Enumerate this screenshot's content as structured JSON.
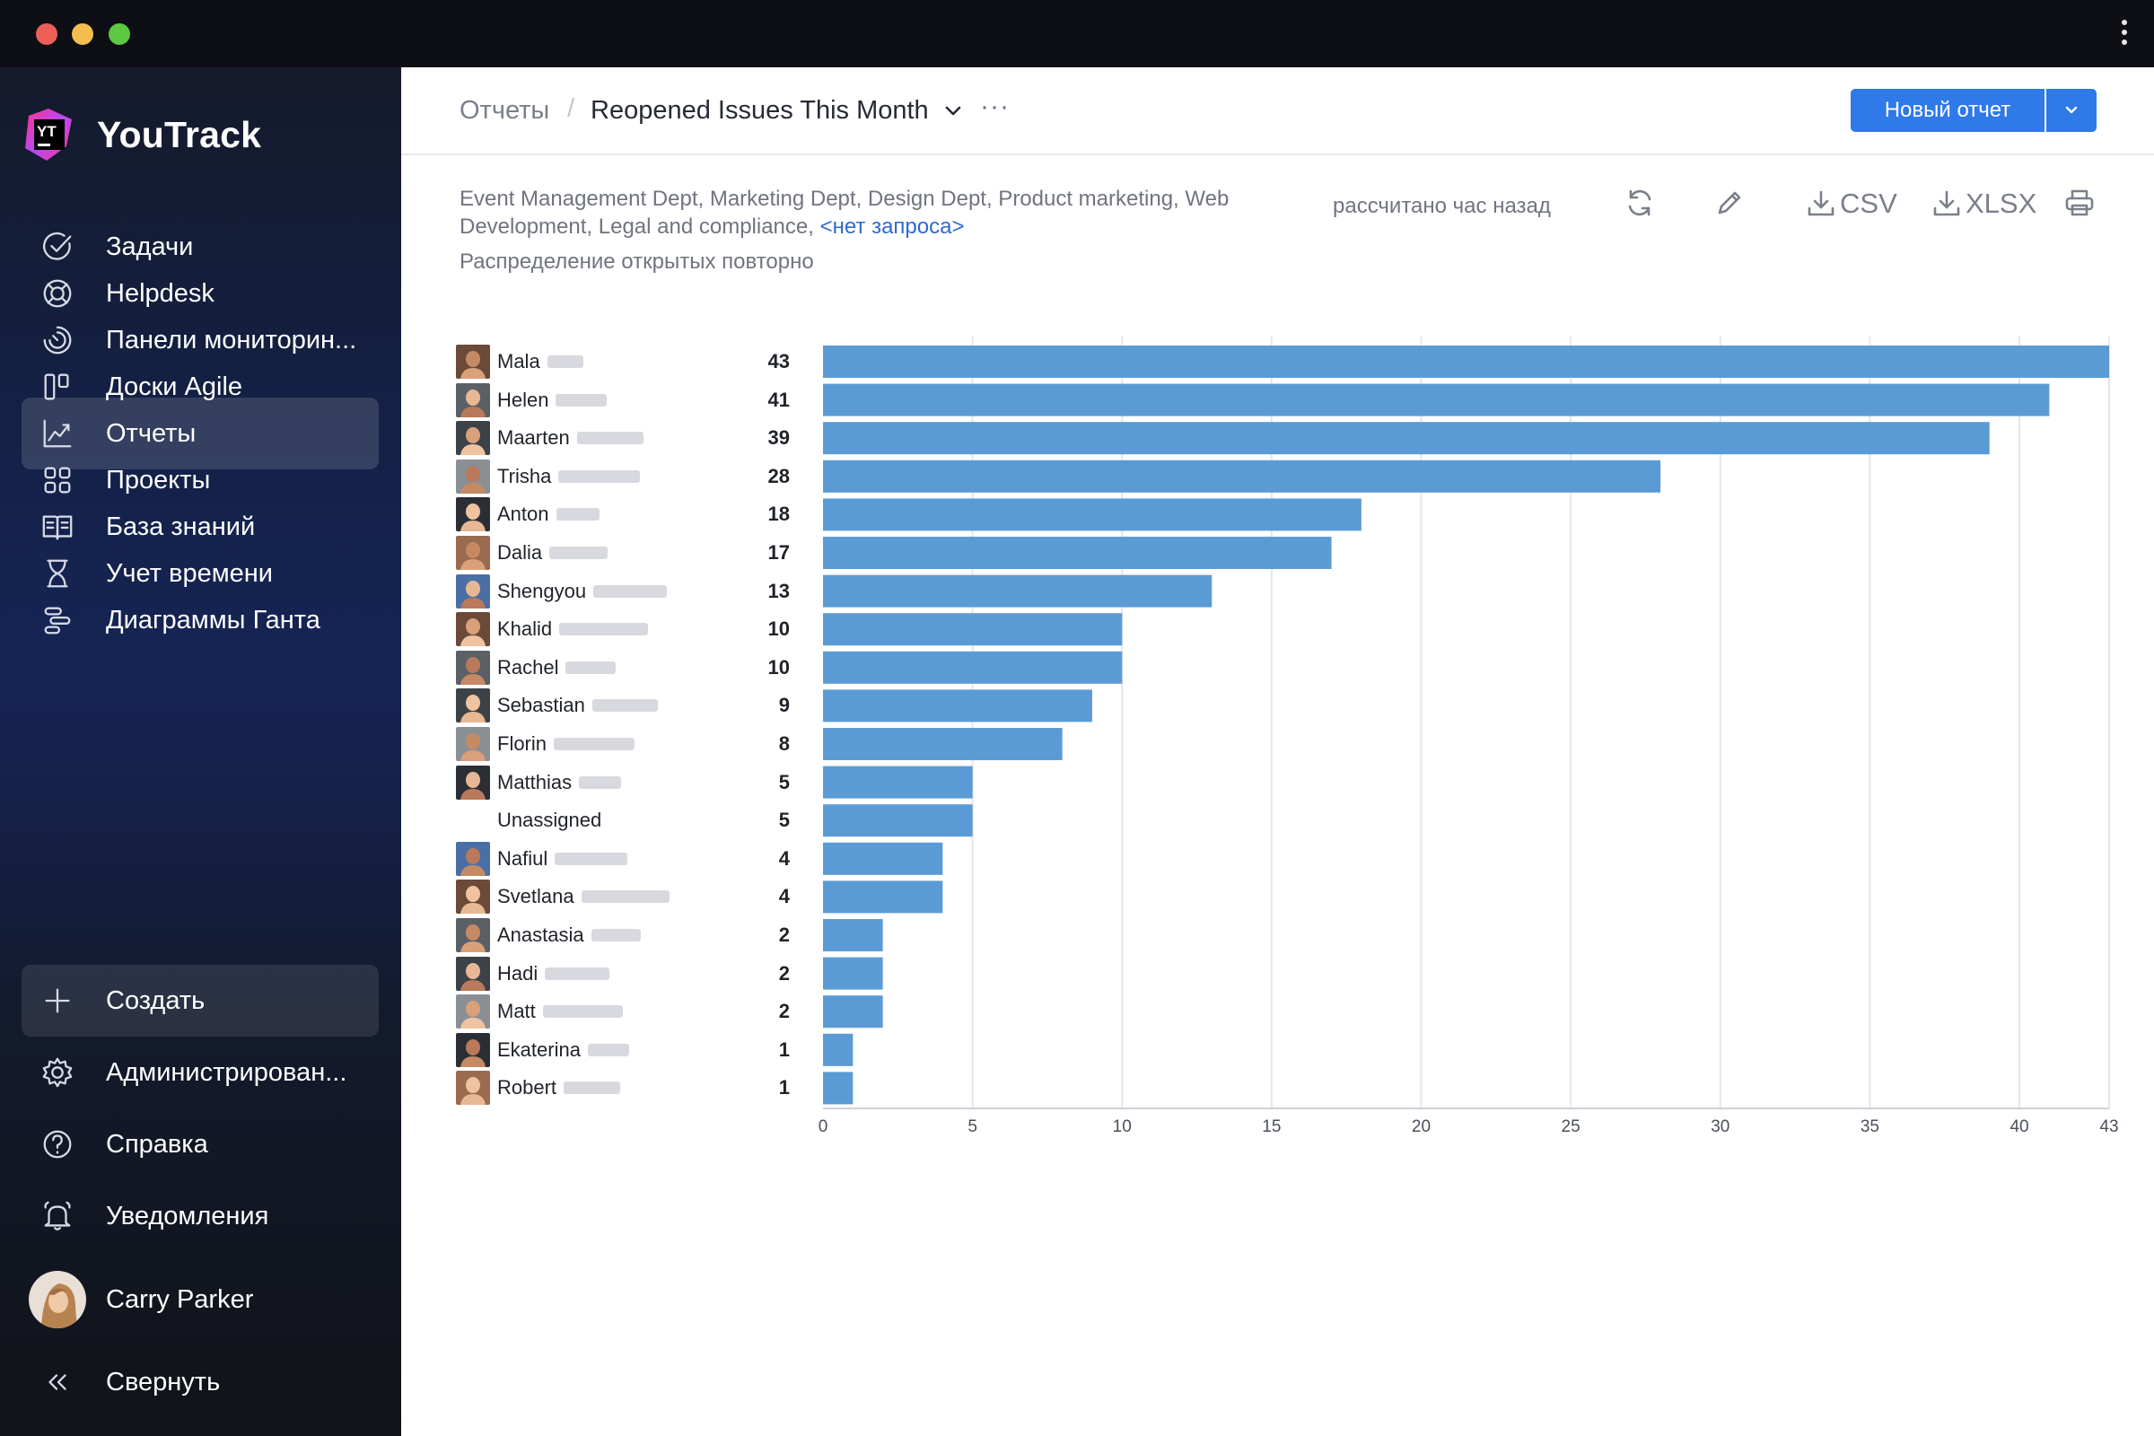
{
  "sidebar": {
    "brand": "YouTrack",
    "brand_mark": "YT",
    "items": [
      {
        "label": "Задачи",
        "icon": "check-circle-icon"
      },
      {
        "label": "Helpdesk",
        "icon": "lifebuoy-icon"
      },
      {
        "label": "Панели мониторин...",
        "icon": "dashboard-icon"
      },
      {
        "label": "Доски Agile",
        "icon": "agile-board-icon"
      },
      {
        "label": "Отчеты",
        "icon": "reports-icon"
      },
      {
        "label": "Проекты",
        "icon": "projects-icon"
      },
      {
        "label": "База знаний",
        "icon": "book-icon"
      },
      {
        "label": "Учет времени",
        "icon": "hourglass-icon"
      },
      {
        "label": "Диаграммы Ганта",
        "icon": "gantt-icon"
      }
    ],
    "bottom_items": [
      {
        "label": "Создать",
        "icon": "plus-icon"
      },
      {
        "label": "Администрирован...",
        "icon": "gear-icon"
      },
      {
        "label": "Справка",
        "icon": "help-icon"
      },
      {
        "label": "Уведомления",
        "icon": "bell-icon"
      }
    ],
    "user": {
      "name": "Carry Parker"
    },
    "collapse_label": "Свернуть"
  },
  "header": {
    "breadcrumb_root": "Отчеты",
    "breadcrumb_sep": "/",
    "report_title": "Reopened Issues This Month",
    "more": "···",
    "new_report_label": "Новый отчет"
  },
  "report": {
    "filter_text": "Event Management Dept, Marketing Dept, Design Dept, Product marketing, Web Development, Legal and compliance,",
    "filter_link": "<нет запроса>",
    "subtitle": "Распределение открытых повторно",
    "calculated": "рассчитано час назад",
    "csv_label": "CSV",
    "xlsx_label": "XLSX"
  },
  "colors": {
    "bar": "#5b9bd5",
    "accent": "#2f79e8"
  },
  "chart_data": {
    "type": "bar",
    "orientation": "horizontal",
    "title": "Распределение открытых повторно",
    "categories": [
      "Mala",
      "Helen",
      "Maarten",
      "Trisha",
      "Anton",
      "Dalia",
      "Shengyou",
      "Khalid",
      "Rachel",
      "Sebastian",
      "Florin",
      "Matthias",
      "Unassigned",
      "Nafiul",
      "Svetlana",
      "Anastasia",
      "Hadi",
      "Matt",
      "Ekaterina",
      "Robert"
    ],
    "values": [
      43,
      41,
      39,
      28,
      18,
      17,
      13,
      10,
      10,
      9,
      8,
      5,
      5,
      4,
      4,
      2,
      2,
      2,
      1,
      1
    ],
    "xlim": [
      0,
      43
    ],
    "xticks": [
      0,
      5,
      10,
      15,
      20,
      25,
      30,
      35,
      40,
      43
    ],
    "grid": true,
    "xlabel": "",
    "ylabel": ""
  }
}
